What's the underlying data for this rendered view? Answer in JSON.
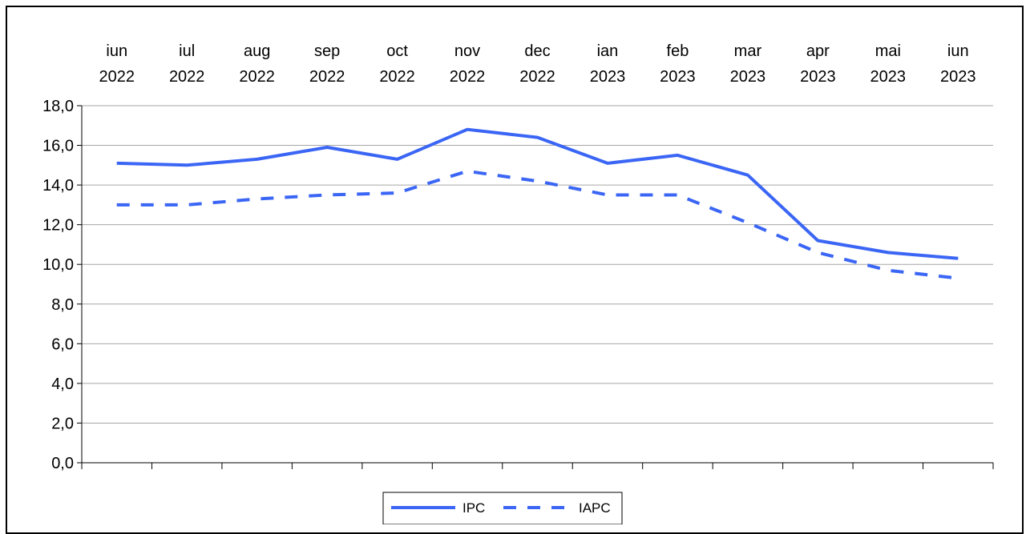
{
  "chart_data": {
    "type": "line",
    "categories": [
      [
        "iun",
        "2022"
      ],
      [
        "iul",
        "2022"
      ],
      [
        "aug",
        "2022"
      ],
      [
        "sep",
        "2022"
      ],
      [
        "oct",
        "2022"
      ],
      [
        "nov",
        "2022"
      ],
      [
        "dec",
        "2022"
      ],
      [
        "ian",
        "2023"
      ],
      [
        "feb",
        "2023"
      ],
      [
        "mar",
        "2023"
      ],
      [
        "apr",
        "2023"
      ],
      [
        "mai",
        "2023"
      ],
      [
        "iun",
        "2023"
      ]
    ],
    "series": [
      {
        "name": "IPC",
        "style": "solid",
        "color": "#3b66f5",
        "values": [
          15.1,
          15.0,
          15.3,
          15.9,
          15.3,
          16.8,
          16.4,
          15.1,
          15.5,
          14.5,
          11.2,
          10.6,
          10.3
        ]
      },
      {
        "name": "IAPC",
        "style": "dashed",
        "color": "#3b66f5",
        "values": [
          13.0,
          13.0,
          13.3,
          13.5,
          13.6,
          14.7,
          14.2,
          13.5,
          13.5,
          12.1,
          10.6,
          9.7,
          9.3
        ]
      }
    ],
    "yticks": [
      "0,0",
      "2,0",
      "4,0",
      "6,0",
      "8,0",
      "10,0",
      "12,0",
      "14,0",
      "16,0",
      "18,0"
    ],
    "ylim": [
      0,
      18
    ],
    "x_axis_labels_position": "top",
    "grid": true,
    "legend": "bottom-center"
  }
}
